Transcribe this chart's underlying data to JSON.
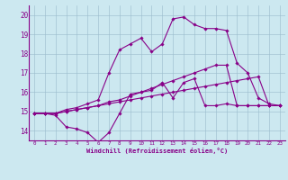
{
  "bg_color": "#cce8f0",
  "line_color": "#880088",
  "grid_color": "#99bbcc",
  "xlabel": "Windchill (Refroidissement éolien,°C)",
  "tick_color": "#880088",
  "xlim": [
    -0.5,
    23.5
  ],
  "ylim": [
    13.5,
    20.5
  ],
  "yticks": [
    14,
    15,
    16,
    17,
    18,
    19,
    20
  ],
  "xticks": [
    0,
    1,
    2,
    3,
    4,
    5,
    6,
    7,
    8,
    9,
    10,
    11,
    12,
    13,
    14,
    15,
    16,
    17,
    18,
    19,
    20,
    21,
    22,
    23
  ],
  "series1_x": [
    0,
    1,
    2,
    3,
    4,
    5,
    6,
    7,
    8,
    9,
    10,
    11,
    12,
    13,
    14,
    15,
    16,
    17,
    18,
    19,
    20,
    21,
    22,
    23
  ],
  "series1_y": [
    14.9,
    14.9,
    14.8,
    14.2,
    14.1,
    13.9,
    13.4,
    13.9,
    14.9,
    15.9,
    16.0,
    16.1,
    16.5,
    15.7,
    16.5,
    16.7,
    15.3,
    15.3,
    15.4,
    15.3,
    15.3,
    15.3,
    15.3,
    15.3
  ],
  "series2_x": [
    0,
    1,
    2,
    3,
    4,
    5,
    6,
    7,
    8,
    9,
    10,
    11,
    12,
    13,
    14,
    15,
    16,
    17,
    18,
    19,
    20,
    21,
    22,
    23
  ],
  "series2_y": [
    14.9,
    14.9,
    14.9,
    15.0,
    15.1,
    15.2,
    15.3,
    15.4,
    15.5,
    15.6,
    15.7,
    15.8,
    15.9,
    16.0,
    16.1,
    16.2,
    16.3,
    16.4,
    16.5,
    16.6,
    16.7,
    16.8,
    15.3,
    15.3
  ],
  "series3_x": [
    0,
    1,
    2,
    3,
    4,
    5,
    6,
    7,
    8,
    9,
    10,
    11,
    12,
    13,
    14,
    15,
    16,
    17,
    18,
    19,
    20,
    21,
    22,
    23
  ],
  "series3_y": [
    14.9,
    14.9,
    14.9,
    15.1,
    15.2,
    15.4,
    15.6,
    17.0,
    18.2,
    18.5,
    18.8,
    18.1,
    18.5,
    19.8,
    19.9,
    19.5,
    19.3,
    19.3,
    19.2,
    17.5,
    17.0,
    15.7,
    15.4,
    15.3
  ],
  "series4_x": [
    0,
    1,
    2,
    3,
    4,
    5,
    6,
    7,
    8,
    9,
    10,
    11,
    12,
    13,
    14,
    15,
    16,
    17,
    18,
    19,
    20,
    21,
    22,
    23
  ],
  "series4_y": [
    14.9,
    14.9,
    14.9,
    15.0,
    15.1,
    15.2,
    15.3,
    15.5,
    15.6,
    15.8,
    16.0,
    16.2,
    16.4,
    16.6,
    16.8,
    17.0,
    17.2,
    17.4,
    17.4,
    15.3,
    15.3,
    15.3,
    15.3,
    15.3
  ]
}
